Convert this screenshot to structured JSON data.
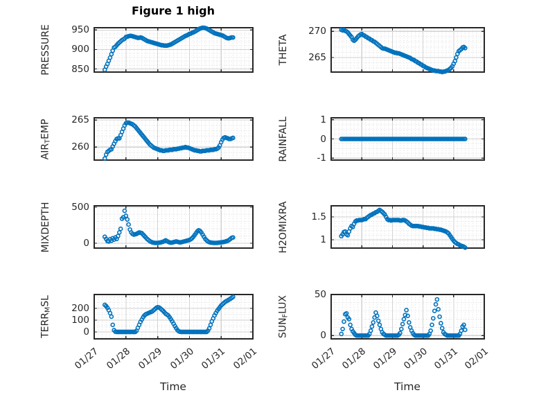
{
  "figure": {
    "title": "Figure 1 high",
    "xlabel": "Time",
    "marker_color": "#0072BD",
    "axis_color": "#262626",
    "grid_color": "#d2d2d2",
    "minor_grid_color": "#dadada",
    "background": "#ffffff"
  },
  "chart_data": {
    "type": "scatter",
    "marker": "open-circle",
    "grid": "major-solid minor-dotted",
    "xlim": [
      0,
      5
    ],
    "xticks": [
      0,
      1,
      2,
      3,
      4,
      5
    ],
    "xtick_labels": [
      "01/27",
      "01/28",
      "01/29",
      "01/30",
      "01/31",
      "02/01"
    ],
    "x_unit": "days since 01/27 00:00",
    "x": [
      0.333,
      0.375,
      0.417,
      0.458,
      0.5,
      0.542,
      0.583,
      0.625,
      0.667,
      0.708,
      0.75,
      0.792,
      0.833,
      0.875,
      0.917,
      0.958,
      1,
      1.042,
      1.083,
      1.125,
      1.167,
      1.208,
      1.25,
      1.292,
      1.333,
      1.375,
      1.417,
      1.458,
      1.5,
      1.542,
      1.583,
      1.625,
      1.667,
      1.708,
      1.75,
      1.792,
      1.833,
      1.875,
      1.917,
      1.958,
      2,
      2.042,
      2.083,
      2.125,
      2.167,
      2.208,
      2.25,
      2.292,
      2.333,
      2.375,
      2.417,
      2.458,
      2.5,
      2.542,
      2.583,
      2.625,
      2.667,
      2.708,
      2.75,
      2.792,
      2.833,
      2.875,
      2.917,
      2.958,
      3,
      3.042,
      3.083,
      3.125,
      3.167,
      3.208,
      3.25,
      3.292,
      3.333,
      3.375,
      3.417,
      3.458,
      3.5,
      3.542,
      3.583,
      3.625,
      3.667,
      3.708,
      3.75,
      3.792,
      3.833,
      3.875,
      3.917,
      3.958,
      4,
      4.042,
      4.083,
      4.125,
      4.167,
      4.208,
      4.25,
      4.292,
      4.333,
      4.375
    ],
    "charts": [
      {
        "name": "PRESSURE",
        "label_parts": [
          {
            "t": "PRESSURE"
          }
        ],
        "row": 0,
        "col": 0,
        "ylim": [
          842,
          956
        ],
        "yticks": [
          850,
          900,
          950
        ],
        "minor_step": 10,
        "y": [
          848,
          856,
          863,
          871,
          879,
          888,
          897,
          905,
          907,
          911,
          915,
          918,
          921,
          924,
          926,
          928,
          932,
          933,
          934,
          935,
          935,
          934,
          933,
          932,
          931,
          930,
          930,
          931,
          930,
          928,
          926,
          924,
          922,
          921,
          920,
          919,
          918,
          917,
          916,
          915,
          914,
          913,
          912,
          911,
          911,
          910,
          910,
          910,
          911,
          912,
          913,
          915,
          917,
          919,
          921,
          923,
          925,
          927,
          929,
          931,
          933,
          935,
          936,
          938,
          940,
          941,
          943,
          944,
          946,
          948,
          950,
          952,
          954,
          955,
          956,
          956,
          955,
          954,
          952,
          950,
          948,
          946,
          944,
          942,
          941,
          940,
          939,
          938,
          937,
          936,
          934,
          932,
          930,
          929,
          929,
          930,
          931,
          931
        ]
      },
      {
        "name": "THETA",
        "label_parts": [
          {
            "t": "THETA"
          }
        ],
        "row": 0,
        "col": 1,
        "ylim": [
          262.2,
          270.7
        ],
        "yticks": [
          265,
          270
        ],
        "minor_step": 1,
        "y": [
          270.3,
          270.2,
          270.3,
          270.1,
          270,
          269.8,
          269.5,
          269.2,
          268.9,
          268.4,
          268.2,
          268.4,
          268.7,
          269,
          269.2,
          269.4,
          269.5,
          269.3,
          269.2,
          269,
          268.9,
          268.7,
          268.6,
          268.4,
          268.3,
          268.1,
          268,
          267.8,
          267.6,
          267.4,
          267.2,
          267,
          266.8,
          266.7,
          266.7,
          266.6,
          266.5,
          266.4,
          266.3,
          266.2,
          266.1,
          266,
          265.9,
          265.9,
          265.8,
          265.8,
          265.7,
          265.6,
          265.5,
          265.4,
          265.3,
          265.2,
          265.1,
          265,
          264.9,
          264.7,
          264.6,
          264.5,
          264.3,
          264.2,
          264,
          263.9,
          263.7,
          263.6,
          263.4,
          263.3,
          263.1,
          263,
          262.9,
          262.8,
          262.7,
          262.6,
          262.5,
          262.5,
          262.4,
          262.4,
          262.4,
          262.3,
          262.3,
          262.2,
          262.3,
          262.3,
          262.4,
          262.5,
          262.6,
          262.8,
          263,
          263.3,
          263.8,
          264.3,
          265,
          265.7,
          266.2,
          266.4,
          266.6,
          266.9,
          267,
          266.8
        ]
      },
      {
        "name": "AIR_TEMP",
        "label_parts": [
          {
            "t": "AIR"
          },
          {
            "t": "T",
            "sub": true
          },
          {
            "t": "EMP"
          }
        ],
        "row": 1,
        "col": 0,
        "ylim": [
          257.6,
          265.4
        ],
        "yticks": [
          260,
          265
        ],
        "minor_step": 1,
        "y": [
          257.9,
          258.6,
          259.1,
          259.3,
          259.5,
          259.6,
          260.1,
          260.6,
          261.1,
          261.5,
          261.6,
          261.6,
          262.2,
          262.8,
          263.4,
          264,
          264.4,
          264.5,
          264.5,
          264.4,
          264.3,
          264.2,
          264,
          263.8,
          263.5,
          263.2,
          262.9,
          262.6,
          262.3,
          262,
          261.7,
          261.4,
          261.1,
          260.8,
          260.5,
          260.3,
          260.1,
          259.9,
          259.8,
          259.7,
          259.6,
          259.5,
          259.4,
          259.4,
          259.3,
          259.3,
          259.4,
          259.4,
          259.4,
          259.5,
          259.5,
          259.5,
          259.6,
          259.6,
          259.6,
          259.7,
          259.7,
          259.8,
          259.8,
          259.9,
          259.9,
          260,
          259.9,
          259.9,
          259.8,
          259.7,
          259.6,
          259.5,
          259.4,
          259.4,
          259.3,
          259.3,
          259.2,
          259.2,
          259.3,
          259.3,
          259.3,
          259.4,
          259.4,
          259.4,
          259.5,
          259.5,
          259.5,
          259.6,
          259.6,
          259.7,
          259.9,
          260.3,
          260.9,
          261.4,
          261.7,
          261.8,
          261.7,
          261.6,
          261.5,
          261.5,
          261.6,
          261.7
        ]
      },
      {
        "name": "RAINFALL",
        "label_parts": [
          {
            "t": "RAINFALL"
          }
        ],
        "row": 1,
        "col": 1,
        "ylim": [
          -1.1,
          1.1
        ],
        "yticks": [
          -1,
          0,
          1
        ],
        "minor_step": 0.25,
        "y": [
          0,
          0,
          0,
          0,
          0,
          0,
          0,
          0,
          0,
          0,
          0,
          0,
          0,
          0,
          0,
          0,
          0,
          0,
          0,
          0,
          0,
          0,
          0,
          0,
          0,
          0,
          0,
          0,
          0,
          0,
          0,
          0,
          0,
          0,
          0,
          0,
          0,
          0,
          0,
          0,
          0,
          0,
          0,
          0,
          0,
          0,
          0,
          0,
          0,
          0,
          0,
          0,
          0,
          0,
          0,
          0,
          0,
          0,
          0,
          0,
          0,
          0,
          0,
          0,
          0,
          0,
          0,
          0,
          0,
          0,
          0,
          0,
          0,
          0,
          0,
          0,
          0,
          0,
          0,
          0,
          0,
          0,
          0,
          0,
          0,
          0,
          0,
          0,
          0,
          0,
          0,
          0,
          0,
          0,
          0,
          0,
          0,
          0
        ]
      },
      {
        "name": "MIXDEPTH",
        "label_parts": [
          {
            "t": "MIXDEPTH"
          }
        ],
        "row": 2,
        "col": 0,
        "ylim": [
          -67,
          519
        ],
        "yticks": [
          0,
          500
        ],
        "minor_step": 100,
        "y": [
          90,
          60,
          30,
          25,
          55,
          35,
          70,
          50,
          80,
          60,
          100,
          150,
          200,
          340,
          360,
          450,
          380,
          330,
          260,
          190,
          150,
          130,
          120,
          125,
          130,
          140,
          150,
          145,
          140,
          120,
          100,
          80,
          60,
          45,
          30,
          20,
          12,
          8,
          5,
          5,
          5,
          8,
          10,
          15,
          20,
          30,
          40,
          30,
          20,
          12,
          8,
          10,
          15,
          20,
          25,
          20,
          15,
          12,
          15,
          20,
          25,
          30,
          35,
          40,
          45,
          55,
          70,
          90,
          115,
          140,
          165,
          180,
          170,
          150,
          120,
          90,
          60,
          40,
          25,
          15,
          10,
          8,
          6,
          5,
          5,
          6,
          8,
          10,
          12,
          15,
          18,
          22,
          28,
          35,
          45,
          60,
          75,
          80
        ]
      },
      {
        "name": "H2OMIXRA",
        "label_parts": [
          {
            "t": "H2OMIXRA"
          }
        ],
        "row": 2,
        "col": 1,
        "ylim": [
          0.82,
          1.74
        ],
        "yticks": [
          1,
          1.5
        ],
        "minor_step": 0.1,
        "y": [
          1.08,
          1.12,
          1.17,
          1.18,
          1.12,
          1.1,
          1.18,
          1.25,
          1.3,
          1.28,
          1.35,
          1.4,
          1.42,
          1.42,
          1.43,
          1.43,
          1.43,
          1.44,
          1.45,
          1.45,
          1.48,
          1.5,
          1.52,
          1.54,
          1.55,
          1.57,
          1.58,
          1.6,
          1.61,
          1.63,
          1.65,
          1.63,
          1.61,
          1.58,
          1.55,
          1.5,
          1.45,
          1.43,
          1.43,
          1.42,
          1.43,
          1.43,
          1.43,
          1.43,
          1.43,
          1.43,
          1.42,
          1.42,
          1.43,
          1.43,
          1.42,
          1.4,
          1.38,
          1.35,
          1.33,
          1.31,
          1.3,
          1.3,
          1.3,
          1.3,
          1.3,
          1.29,
          1.29,
          1.28,
          1.28,
          1.27,
          1.27,
          1.26,
          1.26,
          1.25,
          1.25,
          1.25,
          1.25,
          1.24,
          1.24,
          1.23,
          1.23,
          1.22,
          1.22,
          1.21,
          1.2,
          1.19,
          1.18,
          1.16,
          1.14,
          1.1,
          1.06,
          1.02,
          0.98,
          0.95,
          0.93,
          0.91,
          0.9,
          0.88,
          0.87,
          0.86,
          0.85,
          0.83
        ]
      },
      {
        "name": "TERR_MSL",
        "label_parts": [
          {
            "t": "TERR"
          },
          {
            "t": "M",
            "sub": true
          },
          {
            "t": "SL"
          }
        ],
        "row": 3,
        "col": 0,
        "ylim": [
          -59,
          318
        ],
        "yticks": [
          0,
          100,
          200
        ],
        "minor_step": 50,
        "y": [
          230,
          220,
          205,
          185,
          160,
          130,
          60,
          15,
          2,
          0,
          0,
          0,
          0,
          0,
          0,
          0,
          0,
          0,
          0,
          0,
          0,
          0,
          0,
          0,
          10,
          35,
          60,
          85,
          105,
          125,
          140,
          150,
          155,
          160,
          165,
          170,
          175,
          185,
          195,
          205,
          210,
          208,
          200,
          190,
          180,
          168,
          155,
          148,
          140,
          125,
          108,
          90,
          70,
          50,
          32,
          15,
          5,
          1,
          0,
          0,
          0,
          0,
          0,
          0,
          0,
          0,
          0,
          0,
          0,
          0,
          0,
          0,
          0,
          0,
          0,
          0,
          0,
          0,
          10,
          30,
          60,
          90,
          115,
          140,
          160,
          180,
          195,
          210,
          225,
          235,
          245,
          255,
          262,
          268,
          275,
          282,
          290,
          298
        ]
      },
      {
        "name": "SUN_FLUX",
        "label_parts": [
          {
            "t": "SUN"
          },
          {
            "t": "F",
            "sub": true
          },
          {
            "t": "LUX"
          }
        ],
        "row": 3,
        "col": 1,
        "ylim": [
          -4,
          50
        ],
        "yticks": [
          0,
          50
        ],
        "minor_step": 10,
        "y": [
          2,
          8,
          17,
          26,
          27,
          22,
          20,
          13,
          8,
          5,
          3,
          1,
          0,
          0,
          0,
          0,
          0,
          0,
          0,
          0,
          0,
          0,
          2,
          6,
          11,
          16,
          22,
          28,
          24,
          18,
          13,
          8,
          4,
          2,
          1,
          0,
          0,
          0,
          0,
          0,
          0,
          0,
          0,
          0,
          0,
          1,
          3,
          8,
          14,
          20,
          25,
          31,
          24,
          16,
          10,
          6,
          3,
          1,
          0,
          0,
          0,
          0,
          0,
          0,
          0,
          0,
          0,
          0,
          0,
          2,
          6,
          13,
          21,
          30,
          38,
          44,
          32,
          23,
          15,
          9,
          4,
          2,
          1,
          0,
          0,
          0,
          0,
          0,
          0,
          0,
          0,
          0,
          0,
          2,
          6,
          11,
          13,
          7
        ]
      }
    ]
  }
}
